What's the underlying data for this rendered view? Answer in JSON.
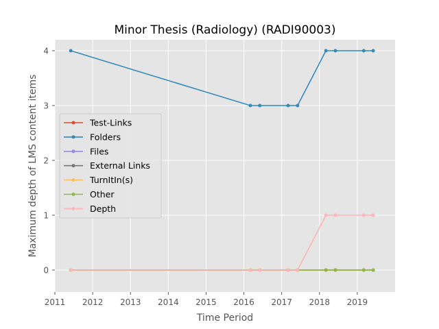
{
  "chart_data": {
    "type": "line",
    "title": "Minor Thesis (Radiology) (RADI90003)",
    "xlabel": "Time Period",
    "ylabel": "Maximum depth of LMS content items",
    "xlim": [
      2011.0,
      2020.0
    ],
    "ylim": [
      -0.4,
      4.2
    ],
    "xticks": [
      2011,
      2012,
      2013,
      2014,
      2015,
      2016,
      2017,
      2018,
      2019
    ],
    "yticks": [
      0,
      1,
      2,
      3,
      4
    ],
    "grid": true,
    "legend_position": "center-left",
    "x": [
      2011.42,
      2016.17,
      2016.42,
      2017.17,
      2017.42,
      2018.17,
      2018.42,
      2019.17,
      2019.42
    ],
    "series": [
      {
        "name": "Test-Links",
        "color": "#E24A33",
        "values": [
          0,
          0,
          0,
          0,
          0,
          0,
          0,
          0,
          0
        ]
      },
      {
        "name": "Folders",
        "color": "#348ABD",
        "values": [
          4,
          3,
          3,
          3,
          3,
          4,
          4,
          4,
          4
        ]
      },
      {
        "name": "Files",
        "color": "#988ED5",
        "values": [
          0,
          0,
          0,
          0,
          0,
          0,
          0,
          0,
          0
        ]
      },
      {
        "name": "External Links",
        "color": "#777777",
        "values": [
          0,
          0,
          0,
          0,
          0,
          0,
          0,
          0,
          0
        ]
      },
      {
        "name": "TurnItIn(s)",
        "color": "#FBC15E",
        "values": [
          0,
          0,
          0,
          0,
          0,
          0,
          0,
          0,
          0
        ]
      },
      {
        "name": "Other",
        "color": "#8EBA42",
        "values": [
          0,
          0,
          0,
          0,
          0,
          0,
          0,
          0,
          0
        ]
      },
      {
        "name": "Depth",
        "color": "#FFB5B8",
        "values": [
          0,
          0,
          0,
          0,
          0,
          1,
          1,
          1,
          1
        ]
      }
    ]
  }
}
